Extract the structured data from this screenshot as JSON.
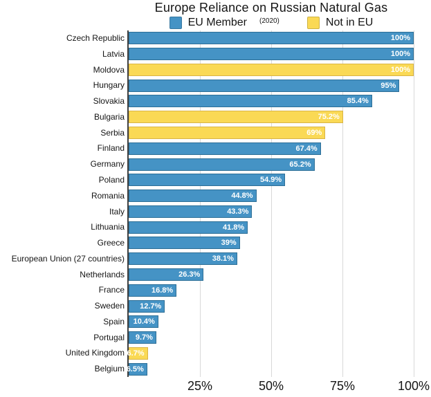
{
  "chart_data": {
    "type": "bar",
    "orientation": "horizontal",
    "title": "Europe Reliance on Russian Natural Gas",
    "subtitle": "(2020)",
    "legend": [
      {
        "label": "EU Member",
        "group": "eu"
      },
      {
        "label": "Not in EU",
        "group": "non_eu"
      }
    ],
    "legend_position": "top-center",
    "grid": "vertical",
    "xlim": [
      0,
      100
    ],
    "xticks": [
      {
        "value": 25,
        "label": "25%"
      },
      {
        "value": 50,
        "label": "50%"
      },
      {
        "value": 75,
        "label": "75%"
      },
      {
        "value": 100,
        "label": "100%"
      }
    ],
    "bars": [
      {
        "category": "Czech Republic",
        "value": 100,
        "label": "100%",
        "group": "eu"
      },
      {
        "category": "Latvia",
        "value": 100,
        "label": "100%",
        "group": "eu"
      },
      {
        "category": "Moldova",
        "value": 100,
        "label": "100%",
        "group": "non_eu"
      },
      {
        "category": "Hungary",
        "value": 95,
        "label": "95%",
        "group": "eu"
      },
      {
        "category": "Slovakia",
        "value": 85.4,
        "label": "85.4%",
        "group": "eu"
      },
      {
        "category": "Bulgaria",
        "value": 75.2,
        "label": "75.2%",
        "group": "non_eu"
      },
      {
        "category": "Serbia",
        "value": 69,
        "label": "69%",
        "group": "non_eu"
      },
      {
        "category": "Finland",
        "value": 67.4,
        "label": "67.4%",
        "group": "eu"
      },
      {
        "category": "Germany",
        "value": 65.2,
        "label": "65.2%",
        "group": "eu"
      },
      {
        "category": "Poland",
        "value": 54.9,
        "label": "54.9%",
        "group": "eu"
      },
      {
        "category": "Romania",
        "value": 44.8,
        "label": "44.8%",
        "group": "eu"
      },
      {
        "category": "Italy",
        "value": 43.3,
        "label": "43.3%",
        "group": "eu"
      },
      {
        "category": "Lithuania",
        "value": 41.8,
        "label": "41.8%",
        "group": "eu"
      },
      {
        "category": "Greece",
        "value": 39,
        "label": "39%",
        "group": "eu"
      },
      {
        "category": "European Union (27 countries)",
        "value": 38.1,
        "label": "38.1%",
        "group": "eu"
      },
      {
        "category": "Netherlands",
        "value": 26.3,
        "label": "26.3%",
        "group": "eu"
      },
      {
        "category": "France",
        "value": 16.8,
        "label": "16.8%",
        "group": "eu"
      },
      {
        "category": "Sweden",
        "value": 12.7,
        "label": "12.7%",
        "group": "eu"
      },
      {
        "category": "Spain",
        "value": 10.4,
        "label": "10.4%",
        "group": "eu"
      },
      {
        "category": "Portugal",
        "value": 9.7,
        "label": "9.7%",
        "group": "eu"
      },
      {
        "category": "United Kingdom",
        "value": 6.7,
        "label": "6.7%",
        "group": "non_eu"
      },
      {
        "category": "Belgium",
        "value": 6.5,
        "label": "6.5%",
        "group": "eu"
      }
    ]
  },
  "colors": {
    "eu": "#4593C5",
    "eu_border": "#2C6E96",
    "non_eu": "#FAD955",
    "non_eu_border": "#D9B445",
    "grid": "#D8D8D8",
    "axis": "#404040",
    "text": "#141414",
    "value_text": "#FFFFFF",
    "background": "#FFFFFF"
  }
}
